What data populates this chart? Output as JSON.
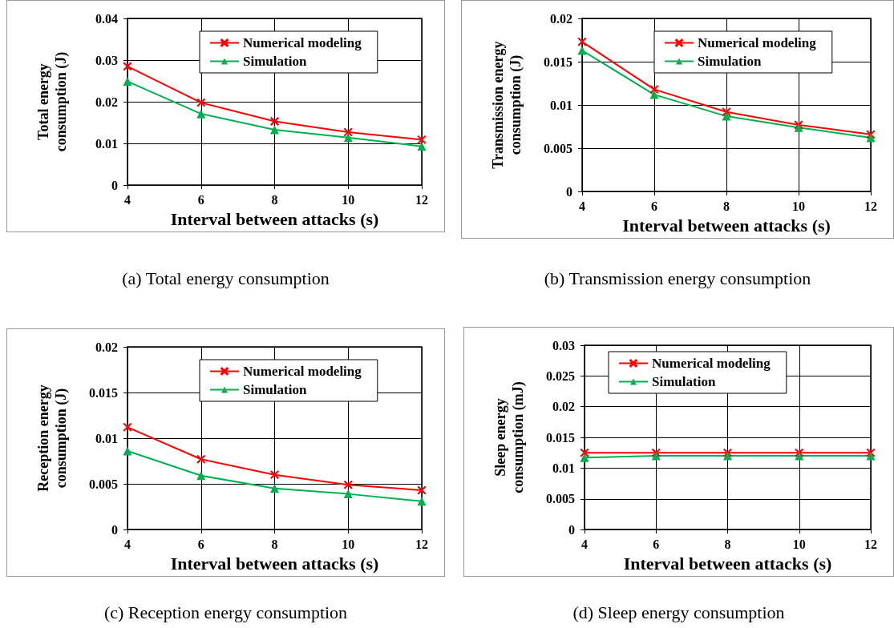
{
  "chart_data": [
    {
      "type": "line",
      "ylabel": "Total energy\nconsumption (J)",
      "xlabel": "Interval between attacks (s)",
      "x": [
        4,
        6,
        8,
        10,
        12
      ],
      "xlim": [
        4,
        12
      ],
      "xticks": [
        4,
        6,
        8,
        10,
        12
      ],
      "ylim": [
        0,
        0.04
      ],
      "yticks": [
        0,
        0.01,
        0.02,
        0.03,
        0.04
      ],
      "grid": true,
      "legend": "top",
      "annotations": [
        "(a) Total energy consumption"
      ],
      "series": [
        {
          "name": "Numerical modeling",
          "color": "#ff0000",
          "marker": "cross",
          "values": [
            0.0285,
            0.0198,
            0.0153,
            0.0127,
            0.0109
          ]
        },
        {
          "name": "Simulation",
          "color": "#00b050",
          "marker": "triangle",
          "values": [
            0.0249,
            0.0171,
            0.0133,
            0.0114,
            0.0093
          ]
        }
      ]
    },
    {
      "type": "line",
      "ylabel": "Transmission energy\nconsumption (J)",
      "xlabel": "Interval between attacks (s)",
      "x": [
        4,
        6,
        8,
        10,
        12
      ],
      "xlim": [
        4,
        12
      ],
      "xticks": [
        4,
        6,
        8,
        10,
        12
      ],
      "ylim": [
        0,
        0.02
      ],
      "yticks": [
        0,
        0.005,
        0.01,
        0.015,
        0.02
      ],
      "grid": true,
      "legend": "top",
      "annotations": [
        "(b) Transmission energy consumption"
      ],
      "series": [
        {
          "name": "Numerical modeling",
          "color": "#ff0000",
          "marker": "cross",
          "values": [
            0.0173,
            0.0118,
            0.0092,
            0.0077,
            0.0066
          ]
        },
        {
          "name": "Simulation",
          "color": "#00b050",
          "marker": "triangle",
          "values": [
            0.0163,
            0.0112,
            0.0087,
            0.0074,
            0.0062
          ]
        }
      ]
    },
    {
      "type": "line",
      "ylabel": "Reception energy\nconsumption (J)",
      "xlabel": "Interval between attacks (s)",
      "x": [
        4,
        6,
        8,
        10,
        12
      ],
      "xlim": [
        4,
        12
      ],
      "xticks": [
        4,
        6,
        8,
        10,
        12
      ],
      "ylim": [
        0,
        0.02
      ],
      "yticks": [
        0,
        0.005,
        0.01,
        0.015,
        0.02
      ],
      "grid": true,
      "legend": "top",
      "annotations": [
        "(c) Reception energy consumption"
      ],
      "series": [
        {
          "name": "Numerical modeling",
          "color": "#ff0000",
          "marker": "cross",
          "values": [
            0.0112,
            0.0077,
            0.006,
            0.0049,
            0.0043
          ]
        },
        {
          "name": "Simulation",
          "color": "#00b050",
          "marker": "triangle",
          "values": [
            0.0086,
            0.0059,
            0.0045,
            0.0039,
            0.0031
          ]
        }
      ]
    },
    {
      "type": "line",
      "ylabel": "Sleep energy\nconsumption (mJ)",
      "xlabel": "Interval between attacks (s)",
      "x": [
        4,
        6,
        8,
        10,
        12
      ],
      "xlim": [
        4,
        12
      ],
      "xticks": [
        4,
        6,
        8,
        10,
        12
      ],
      "ylim": [
        0,
        0.03
      ],
      "yticks": [
        0,
        0.005,
        0.01,
        0.015,
        0.02,
        0.025,
        0.03
      ],
      "grid": true,
      "legend": "top left",
      "annotations": [
        "(d) Sleep energy consumption"
      ],
      "series": [
        {
          "name": "Numerical modeling",
          "color": "#ff0000",
          "marker": "cross",
          "values": [
            0.0125,
            0.0125,
            0.0125,
            0.0125,
            0.0125
          ]
        },
        {
          "name": "Simulation",
          "color": "#00b050",
          "marker": "triangle",
          "values": [
            0.0117,
            0.012,
            0.012,
            0.012,
            0.012
          ]
        }
      ]
    }
  ]
}
